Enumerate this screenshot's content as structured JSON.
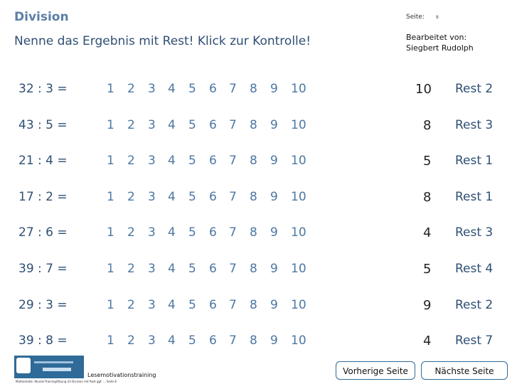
{
  "header": {
    "title": "Division",
    "page_label": "Seite:",
    "page_number": "8",
    "instruction": "Nenne das Ergebnis mit Rest! Klick zur Kontrolle!",
    "edited_by_line1": "Bearbeitet von:",
    "edited_by_line2": "Siegbert Rudolph"
  },
  "choices": [
    "1",
    "2",
    "3",
    "4",
    "5",
    "6",
    "7",
    "8",
    "9",
    "10"
  ],
  "rows": [
    {
      "problem": "32 : 3 =",
      "answer": "10",
      "rest": "Rest 2"
    },
    {
      "problem": "43 : 5 =",
      "answer": "8",
      "rest": "Rest 3"
    },
    {
      "problem": "21 : 4 =",
      "answer": "5",
      "rest": "Rest 1"
    },
    {
      "problem": "17 : 2 =",
      "answer": "8",
      "rest": "Rest 1"
    },
    {
      "problem": "27 : 6 =",
      "answer": "4",
      "rest": "Rest 3"
    },
    {
      "problem": "39 : 7 =",
      "answer": "5",
      "rest": "Rest 4"
    },
    {
      "problem": "29 : 3 =",
      "answer": "9",
      "rest": "Rest 2"
    },
    {
      "problem": "39 : 8 =",
      "answer": "4",
      "rest": "Rest 7"
    }
  ],
  "footer": {
    "logo_icon": "school-logo-icon",
    "training_label": "Lesemotivationstraining",
    "note": "Mathematik: Wurzel-Training/Übung 43 Division mit Rest ggf. ... Seite 8",
    "prev_label": "Vorherige Seite",
    "next_label": "Nächste Seite"
  }
}
